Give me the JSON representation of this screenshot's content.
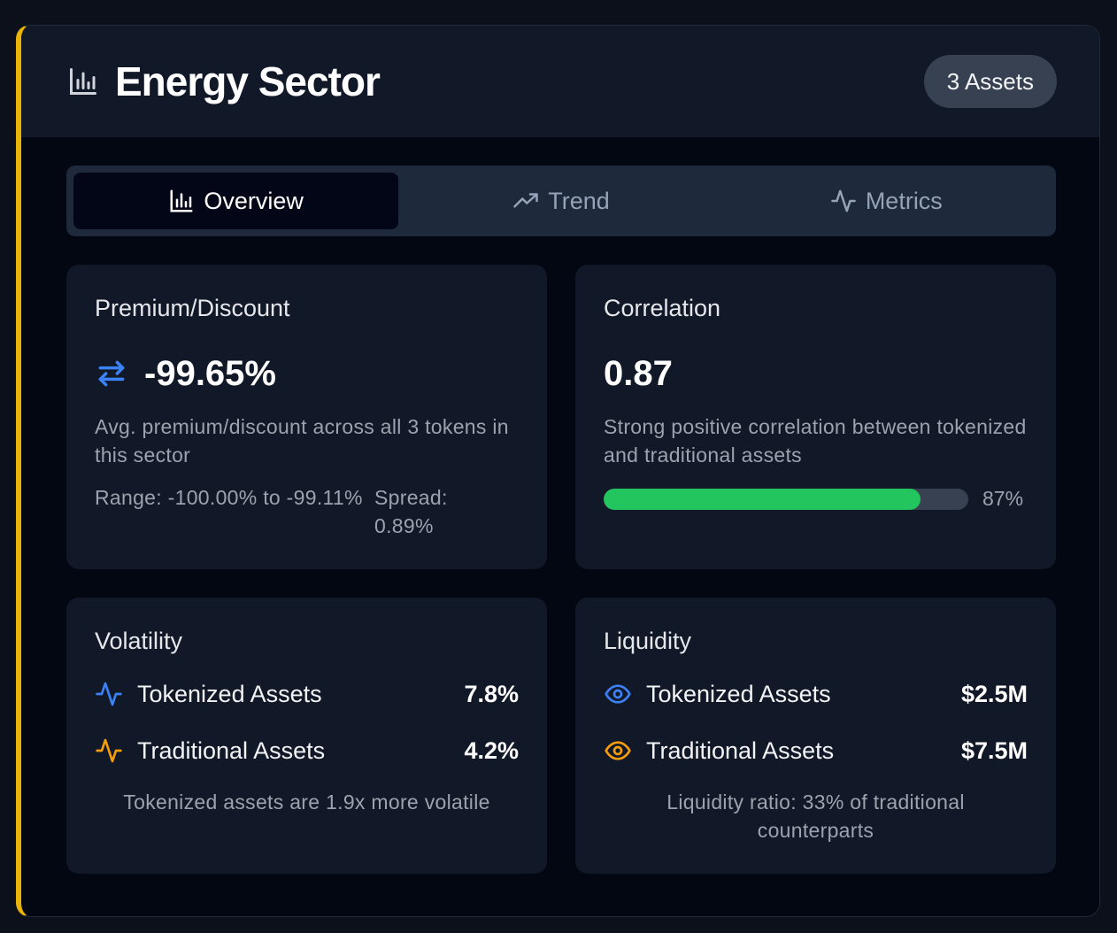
{
  "header": {
    "title": "Energy Sector",
    "title_icon": "bar-chart-icon",
    "badge": "3 Assets"
  },
  "tabs": [
    {
      "label": "Overview",
      "icon": "bar-chart-icon",
      "active": true
    },
    {
      "label": "Trend",
      "icon": "trending-up-icon",
      "active": false
    },
    {
      "label": "Metrics",
      "icon": "activity-icon",
      "active": false
    }
  ],
  "premium": {
    "title": "Premium/Discount",
    "value": "-99.65%",
    "icon": "arrows-swap-icon",
    "description": "Avg. premium/discount across all 3 tokens in this sector",
    "range": "Range: -100.00% to -99.11%",
    "spread": "Spread: 0.89%"
  },
  "correlation": {
    "title": "Correlation",
    "value": "0.87",
    "description": "Strong positive correlation between tokenized and traditional assets",
    "progress": 0.87,
    "progress_label": "87%"
  },
  "volatility": {
    "title": "Volatility",
    "rows": [
      {
        "label": "Tokenized Assets",
        "value": "7.8%",
        "icon": "activity-icon",
        "color": "#3b82f6"
      },
      {
        "label": "Traditional Assets",
        "value": "4.2%",
        "icon": "activity-icon",
        "color": "#f59e0b"
      }
    ],
    "note": "Tokenized assets are 1.9x more volatile"
  },
  "liquidity": {
    "title": "Liquidity",
    "rows": [
      {
        "label": "Tokenized Assets",
        "value": "$2.5M",
        "icon": "eye-icon",
        "color": "#3b82f6"
      },
      {
        "label": "Traditional Assets",
        "value": "$7.5M",
        "icon": "eye-icon",
        "color": "#f59e0b"
      }
    ],
    "note": "Liquidity ratio: 33% of traditional counterparts"
  },
  "colors": {
    "accent_border": "#eab308",
    "progress_fill": "#22c55e",
    "blue": "#3b82f6",
    "amber": "#f59e0b"
  }
}
